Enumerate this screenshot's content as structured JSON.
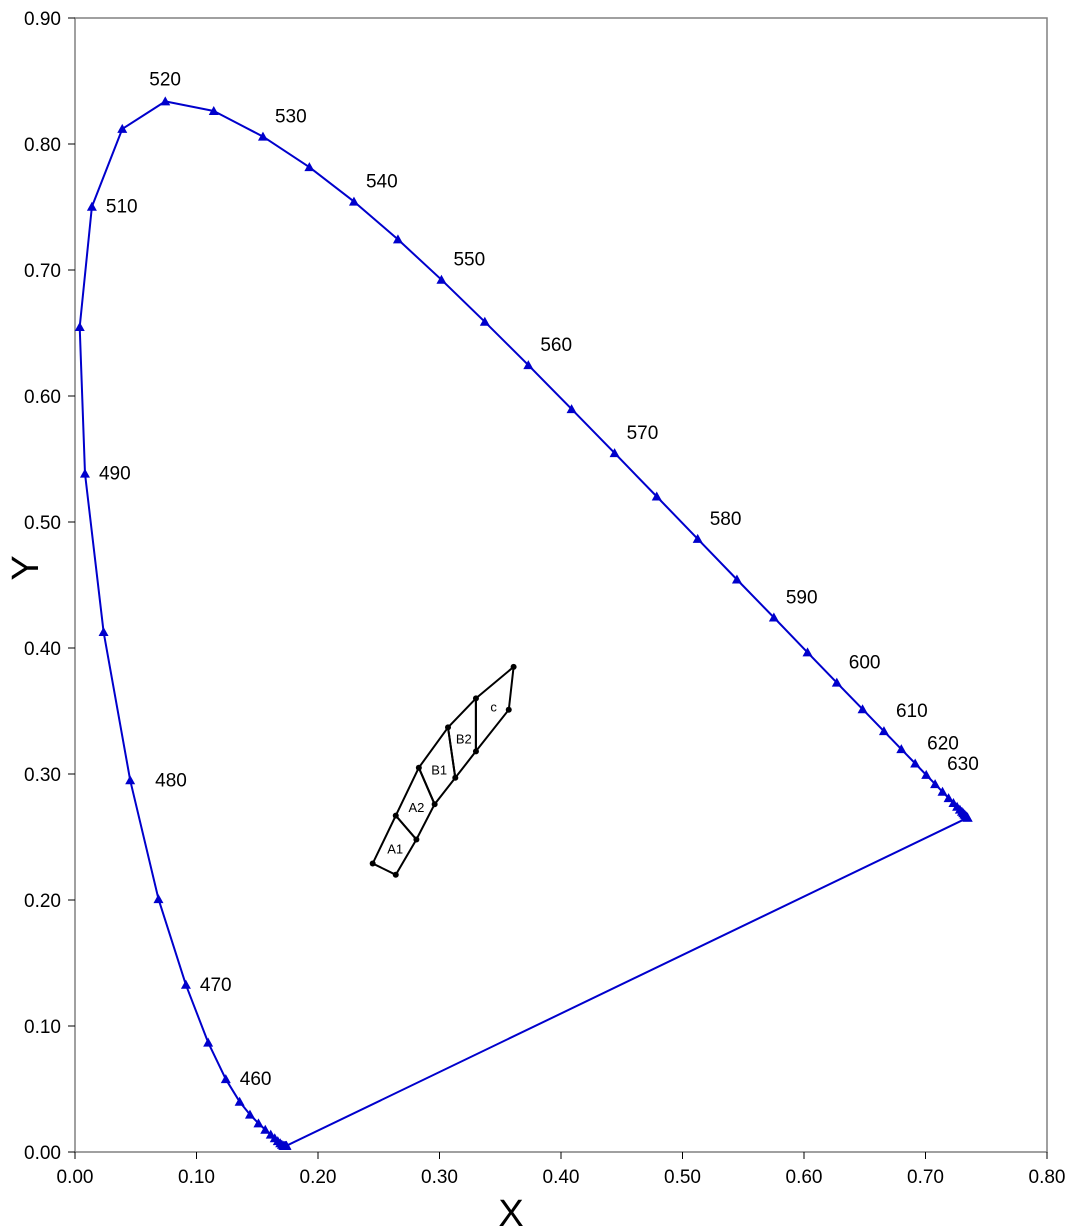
{
  "chart_data": {
    "type": "scatter",
    "xlabel": "X",
    "ylabel": "Y",
    "xlim": [
      0,
      0.8
    ],
    "ylim": [
      0,
      0.9
    ],
    "x_ticks": [
      "0.00",
      "0.10",
      "0.20",
      "0.30",
      "0.40",
      "0.50",
      "0.60",
      "0.70",
      "0.80"
    ],
    "y_ticks": [
      "0.00",
      "0.10",
      "0.20",
      "0.30",
      "0.40",
      "0.50",
      "0.60",
      "0.70",
      "0.80",
      "0.90"
    ],
    "grid": false,
    "colors": {
      "locus": "#0000CC",
      "regions": "#000000",
      "frame": "#808080"
    },
    "spectral_locus": {
      "name": "",
      "points": [
        {
          "x": 0.1741,
          "y": 0.005
        },
        {
          "x": 0.1738,
          "y": 0.0049
        },
        {
          "x": 0.1736,
          "y": 0.005
        },
        {
          "x": 0.1733,
          "y": 0.0048
        },
        {
          "x": 0.173,
          "y": 0.0048
        },
        {
          "x": 0.1726,
          "y": 0.0048
        },
        {
          "x": 0.1721,
          "y": 0.0048
        },
        {
          "x": 0.1714,
          "y": 0.0051
        },
        {
          "x": 0.1703,
          "y": 0.0058
        },
        {
          "x": 0.1689,
          "y": 0.0069
        },
        {
          "x": 0.1669,
          "y": 0.0086
        },
        {
          "x": 0.1644,
          "y": 0.0109
        },
        {
          "x": 0.1611,
          "y": 0.0138
        },
        {
          "x": 0.1566,
          "y": 0.0177
        },
        {
          "x": 0.151,
          "y": 0.0227
        },
        {
          "x": 0.144,
          "y": 0.0297
        },
        {
          "x": 0.1355,
          "y": 0.0399
        },
        {
          "x": 0.1241,
          "y": 0.0578
        },
        {
          "x": 0.1096,
          "y": 0.0868
        },
        {
          "x": 0.0913,
          "y": 0.1327
        },
        {
          "x": 0.0687,
          "y": 0.2007
        },
        {
          "x": 0.0454,
          "y": 0.295
        },
        {
          "x": 0.0235,
          "y": 0.4127
        },
        {
          "x": 0.0082,
          "y": 0.5384
        },
        {
          "x": 0.0039,
          "y": 0.6548
        },
        {
          "x": 0.0139,
          "y": 0.7502
        },
        {
          "x": 0.0389,
          "y": 0.812
        },
        {
          "x": 0.0743,
          "y": 0.8338
        },
        {
          "x": 0.1142,
          "y": 0.8262
        },
        {
          "x": 0.1547,
          "y": 0.8059
        },
        {
          "x": 0.1929,
          "y": 0.7816
        },
        {
          "x": 0.2296,
          "y": 0.7543
        },
        {
          "x": 0.2658,
          "y": 0.7243
        },
        {
          "x": 0.3016,
          "y": 0.6923
        },
        {
          "x": 0.3373,
          "y": 0.6589
        },
        {
          "x": 0.3731,
          "y": 0.6245
        },
        {
          "x": 0.4087,
          "y": 0.5896
        },
        {
          "x": 0.4441,
          "y": 0.5547
        },
        {
          "x": 0.4788,
          "y": 0.5202
        },
        {
          "x": 0.5125,
          "y": 0.4866
        },
        {
          "x": 0.5448,
          "y": 0.4544
        },
        {
          "x": 0.5752,
          "y": 0.4242
        },
        {
          "x": 0.6029,
          "y": 0.3965
        },
        {
          "x": 0.627,
          "y": 0.3725
        },
        {
          "x": 0.6482,
          "y": 0.3514
        },
        {
          "x": 0.6658,
          "y": 0.334
        },
        {
          "x": 0.6801,
          "y": 0.3197
        },
        {
          "x": 0.6915,
          "y": 0.3083
        },
        {
          "x": 0.7006,
          "y": 0.2993
        },
        {
          "x": 0.7079,
          "y": 0.292
        },
        {
          "x": 0.714,
          "y": 0.2859
        },
        {
          "x": 0.719,
          "y": 0.2809
        },
        {
          "x": 0.723,
          "y": 0.277
        },
        {
          "x": 0.726,
          "y": 0.274
        },
        {
          "x": 0.7283,
          "y": 0.2717
        },
        {
          "x": 0.73,
          "y": 0.27
        },
        {
          "x": 0.7311,
          "y": 0.2689
        },
        {
          "x": 0.732,
          "y": 0.268
        },
        {
          "x": 0.7327,
          "y": 0.2673
        },
        {
          "x": 0.7334,
          "y": 0.2666
        },
        {
          "x": 0.734,
          "y": 0.266
        },
        {
          "x": 0.7344,
          "y": 0.2656
        },
        {
          "x": 0.7346,
          "y": 0.2654
        },
        {
          "x": 0.7347,
          "y": 0.2653
        }
      ]
    },
    "wavelength_labels": [
      {
        "label": "460",
        "x": 0.1241,
        "y": 0.0578
      },
      {
        "label": "470",
        "x": 0.0913,
        "y": 0.1327
      },
      {
        "label": "480",
        "x": 0.0454,
        "y": 0.295
      },
      {
        "label": "490",
        "x": 0.0082,
        "y": 0.5384
      },
      {
        "label": "510",
        "x": 0.0139,
        "y": 0.7502
      },
      {
        "label": "520",
        "x": 0.0743,
        "y": 0.8338
      },
      {
        "label": "530",
        "x": 0.1547,
        "y": 0.8059
      },
      {
        "label": "540",
        "x": 0.2296,
        "y": 0.7543
      },
      {
        "label": "550",
        "x": 0.3016,
        "y": 0.6923
      },
      {
        "label": "560",
        "x": 0.3731,
        "y": 0.6245
      },
      {
        "label": "570",
        "x": 0.4441,
        "y": 0.5547
      },
      {
        "label": "580",
        "x": 0.5125,
        "y": 0.4866
      },
      {
        "label": "590",
        "x": 0.5752,
        "y": 0.4242
      },
      {
        "label": "600",
        "x": 0.627,
        "y": 0.3725
      },
      {
        "label": "610",
        "x": 0.6658,
        "y": 0.334
      },
      {
        "label": "620",
        "x": 0.6915,
        "y": 0.3083
      },
      {
        "label": "630",
        "x": 0.7079,
        "y": 0.292
      }
    ],
    "regions": [
      {
        "label": "A1",
        "points": [
          {
            "x": 0.245,
            "y": 0.229
          },
          {
            "x": 0.264,
            "y": 0.22
          },
          {
            "x": 0.281,
            "y": 0.248
          },
          {
            "x": 0.264,
            "y": 0.267
          }
        ]
      },
      {
        "label": "A2",
        "points": [
          {
            "x": 0.264,
            "y": 0.267
          },
          {
            "x": 0.281,
            "y": 0.248
          },
          {
            "x": 0.296,
            "y": 0.276
          },
          {
            "x": 0.283,
            "y": 0.305
          }
        ]
      },
      {
        "label": "B1",
        "points": [
          {
            "x": 0.283,
            "y": 0.305
          },
          {
            "x": 0.296,
            "y": 0.276
          },
          {
            "x": 0.313,
            "y": 0.297
          },
          {
            "x": 0.307,
            "y": 0.337
          }
        ]
      },
      {
        "label": "B2",
        "points": [
          {
            "x": 0.307,
            "y": 0.337
          },
          {
            "x": 0.313,
            "y": 0.297
          },
          {
            "x": 0.33,
            "y": 0.318
          },
          {
            "x": 0.33,
            "y": 0.36
          }
        ]
      },
      {
        "label": "c",
        "points": [
          {
            "x": 0.33,
            "y": 0.36
          },
          {
            "x": 0.33,
            "y": 0.318
          },
          {
            "x": 0.357,
            "y": 0.351
          },
          {
            "x": 0.361,
            "y": 0.385
          }
        ]
      }
    ],
    "region_vertices": [
      {
        "x": 0.245,
        "y": 0.229
      },
      {
        "x": 0.264,
        "y": 0.22
      },
      {
        "x": 0.264,
        "y": 0.267
      },
      {
        "x": 0.281,
        "y": 0.248
      },
      {
        "x": 0.283,
        "y": 0.305
      },
      {
        "x": 0.296,
        "y": 0.276
      },
      {
        "x": 0.307,
        "y": 0.337
      },
      {
        "x": 0.313,
        "y": 0.297
      },
      {
        "x": 0.33,
        "y": 0.36
      },
      {
        "x": 0.33,
        "y": 0.318
      },
      {
        "x": 0.357,
        "y": 0.351
      },
      {
        "x": 0.361,
        "y": 0.385
      }
    ]
  }
}
